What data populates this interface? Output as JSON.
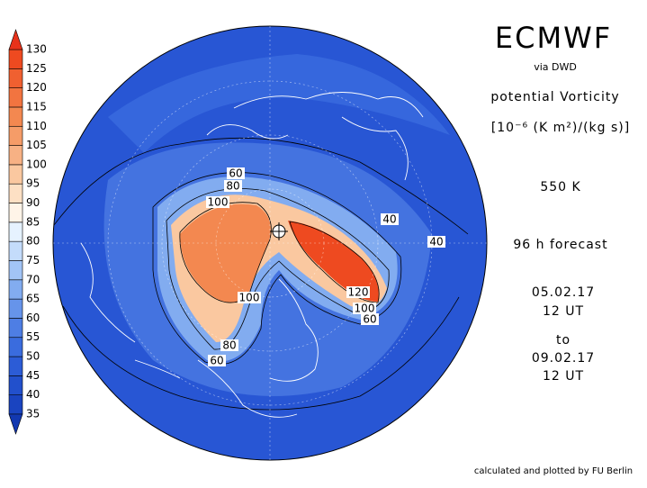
{
  "header": {
    "title": "ECMWF",
    "source": "via DWD",
    "variable": "potential Vorticity",
    "unit": "[10⁻⁶ (K m²)/(kg s)]",
    "level": "550 K",
    "forecast": "96 h forecast",
    "init_date": "05.02.17",
    "init_time": "12 UT",
    "to": "to",
    "valid_date": "09.02.17",
    "valid_time": "12 UT"
  },
  "colorbar": {
    "levels": [
      35,
      40,
      45,
      50,
      55,
      60,
      65,
      70,
      75,
      80,
      85,
      90,
      95,
      100,
      105,
      110,
      115,
      120,
      125,
      130
    ],
    "colors": [
      "#1238b0",
      "#1a44c0",
      "#2250cc",
      "#2c5cd6",
      "#3a6cde",
      "#4e7ee4",
      "#6694ea",
      "#82acf0",
      "#a2c4f6",
      "#c4dcfb",
      "#e6f2ff",
      "#fff4e8",
      "#fde0c4",
      "#fac8a0",
      "#f7b184",
      "#f59c68",
      "#f38850",
      "#f27440",
      "#f06030",
      "#ee4a20",
      "#e8321a"
    ]
  },
  "contour_labels": [
    "60",
    "80",
    "100",
    "40",
    "40",
    "120",
    "100",
    "60",
    "100",
    "80",
    "60"
  ],
  "footer": "calculated and plotted by FU Berlin"
}
